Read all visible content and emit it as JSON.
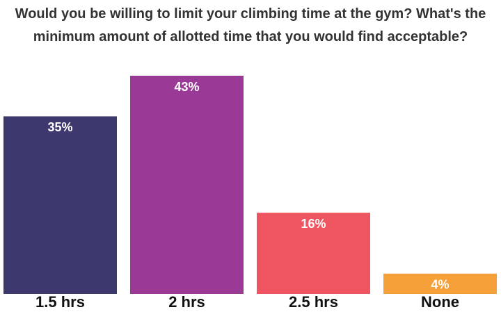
{
  "chart_data": {
    "type": "bar",
    "title": "Would you be willing to limit your climbing time at the gym? What's the minimum amount of allotted time that you would find acceptable?",
    "categories": [
      "1.5 hrs",
      "2 hrs",
      "2.5 hrs",
      "None"
    ],
    "values": [
      35,
      43,
      16,
      4
    ],
    "value_labels": [
      "35%",
      "43%",
      "16%",
      "4%"
    ],
    "colors": [
      "#3d396e",
      "#9b3a96",
      "#ef5560",
      "#f6a03a"
    ],
    "grid": false
  }
}
